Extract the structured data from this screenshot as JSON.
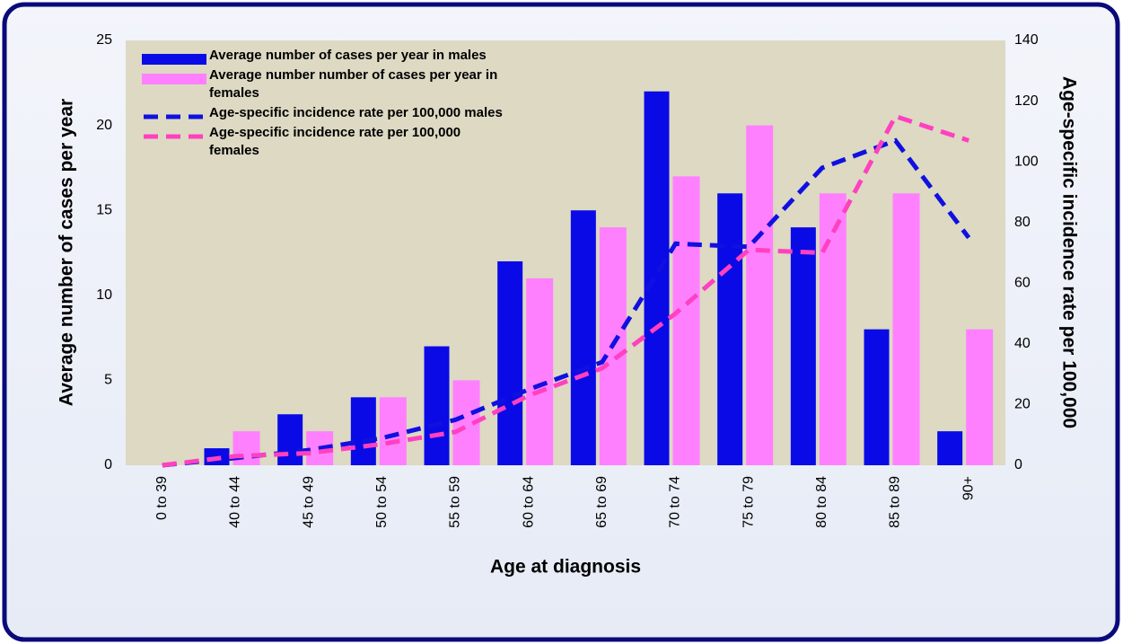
{
  "chart_data": {
    "type": "bar",
    "categories": [
      "0 to 39",
      "40 to 44",
      "45 to 49",
      "50 to 54",
      "55 to 59",
      "60 to 64",
      "65 to 69",
      "70 to 74",
      "75 to 79",
      "80 to 84",
      "85 to 89",
      "90+"
    ],
    "series": [
      {
        "name": "Average number of cases per year in males",
        "color": "#0a0ae6",
        "type": "bar",
        "values": [
          0,
          1,
          3,
          4,
          7,
          12,
          15,
          22,
          16,
          14,
          8,
          2
        ]
      },
      {
        "name": "Average number number of cases per year in females",
        "color": "#ff80ff",
        "type": "bar",
        "values": [
          0,
          2,
          2,
          4,
          5,
          11,
          14,
          17,
          20,
          16,
          16,
          8
        ]
      },
      {
        "name": "Age-specific incidence rate per 100,000 males",
        "color": "#1010e0",
        "type": "line",
        "axis": "y2",
        "values": [
          0,
          2.4,
          5,
          9,
          15,
          25,
          34,
          73,
          72,
          98,
          107,
          75
        ]
      },
      {
        "name": "Age-specific incidence rate per 100,000 females",
        "color": "#ff40c0",
        "type": "line",
        "axis": "y2",
        "values": [
          0,
          3,
          4,
          7,
          11,
          23,
          32,
          50,
          71,
          70,
          115,
          107
        ]
      }
    ],
    "x_label": "Age at diagnosis",
    "y_label": "Average number of cases per year",
    "y2_label": "Age-specific incidence rate per 100,000",
    "ylim": [
      0,
      25
    ],
    "yticks": [
      0,
      5,
      10,
      15,
      20,
      25
    ],
    "y2lim": [
      0,
      140
    ],
    "y2ticks": [
      0,
      20,
      40,
      60,
      80,
      100,
      120,
      140
    ]
  }
}
